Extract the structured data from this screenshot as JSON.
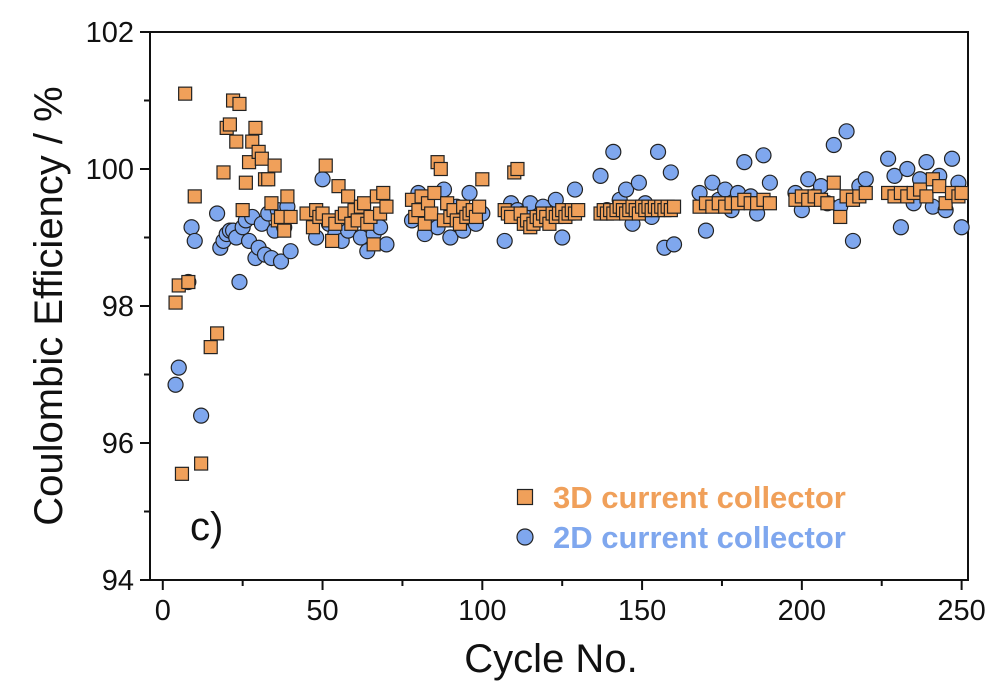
{
  "chart_data": {
    "type": "scatter",
    "title": "",
    "xlabel": "Cycle No.",
    "ylabel": "Coulombic Efficiency / %",
    "xlim": [
      -4,
      252
    ],
    "ylim": [
      94,
      102
    ],
    "xticks": [
      0,
      50,
      100,
      150,
      200,
      250
    ],
    "yticks": [
      94,
      96,
      98,
      100,
      102
    ],
    "grid": false,
    "legend": "bottom-right",
    "panel_label": "c)",
    "colors": {
      "series_3d": "#f0a05a",
      "series_2d": "#7fa7ee",
      "edge": "#222222"
    },
    "series": [
      {
        "name": "3D current collector",
        "marker": "square",
        "color": "#f0a05a",
        "x": [
          4,
          5,
          6,
          7,
          8,
          10,
          12,
          15,
          17,
          19,
          20,
          21,
          22,
          23,
          24,
          25,
          26,
          27,
          28,
          29,
          30,
          31,
          32,
          33,
          34,
          35,
          36,
          37,
          38,
          39,
          40,
          45,
          47,
          48,
          49,
          50,
          51,
          52,
          53,
          54,
          55,
          56,
          57,
          58,
          59,
          60,
          61,
          62,
          63,
          64,
          65,
          66,
          67,
          68,
          69,
          70,
          78,
          79,
          80,
          81,
          82,
          83,
          84,
          85,
          86,
          87,
          88,
          89,
          90,
          91,
          92,
          93,
          94,
          95,
          96,
          97,
          98,
          99,
          100,
          107,
          108,
          109,
          110,
          111,
          112,
          113,
          114,
          115,
          116,
          117,
          118,
          119,
          120,
          121,
          122,
          123,
          124,
          125,
          126,
          127,
          128,
          129,
          130,
          137,
          138,
          139,
          140,
          141,
          142,
          143,
          144,
          145,
          146,
          147,
          148,
          149,
          150,
          151,
          152,
          153,
          154,
          155,
          156,
          157,
          158,
          159,
          160,
          168,
          170,
          172,
          174,
          176,
          178,
          180,
          182,
          184,
          186,
          188,
          190,
          198,
          200,
          202,
          204,
          206,
          208,
          210,
          212,
          214,
          216,
          218,
          220,
          227,
          229,
          231,
          233,
          235,
          237,
          239,
          241,
          243,
          245,
          247,
          249,
          250
        ],
        "y": [
          98.05,
          98.3,
          95.55,
          101.1,
          98.35,
          99.6,
          95.7,
          97.4,
          97.6,
          99.95,
          100.6,
          100.65,
          101.0,
          100.4,
          100.95,
          99.4,
          99.8,
          100.1,
          100.4,
          100.6,
          100.25,
          100.15,
          99.85,
          99.85,
          99.5,
          100.05,
          99.25,
          99.3,
          99.1,
          99.6,
          99.3,
          99.35,
          99.15,
          99.4,
          99.3,
          99.35,
          100.05,
          99.25,
          98.95,
          99.2,
          99.75,
          99.3,
          99.35,
          99.6,
          99.2,
          99.4,
          99.25,
          99.45,
          99.5,
          99.2,
          99.3,
          98.9,
          99.6,
          99.35,
          99.65,
          99.45,
          99.55,
          99.3,
          99.4,
          99.6,
          99.2,
          99.5,
          99.35,
          99.65,
          100.1,
          100.0,
          99.25,
          99.5,
          99.3,
          99.4,
          99.25,
          99.2,
          99.45,
          99.3,
          99.35,
          99.4,
          99.3,
          99.45,
          99.85,
          99.4,
          99.35,
          99.3,
          99.95,
          100.0,
          99.35,
          99.2,
          99.25,
          99.15,
          99.2,
          99.3,
          99.25,
          99.35,
          99.3,
          99.2,
          99.35,
          99.3,
          99.35,
          99.4,
          99.3,
          99.35,
          99.4,
          99.35,
          99.4,
          99.35,
          99.4,
          99.35,
          99.4,
          99.35,
          99.4,
          99.45,
          99.4,
          99.35,
          99.4,
          99.45,
          99.4,
          99.35,
          99.45,
          99.4,
          99.45,
          99.4,
          99.45,
          99.4,
          99.45,
          99.4,
          99.45,
          99.4,
          99.45,
          99.45,
          99.5,
          99.45,
          99.5,
          99.45,
          99.5,
          99.5,
          99.55,
          99.5,
          99.5,
          99.55,
          99.5,
          99.55,
          99.6,
          99.55,
          99.6,
          99.55,
          99.5,
          99.8,
          99.3,
          99.6,
          99.55,
          99.6,
          99.65,
          99.65,
          99.6,
          99.65,
          99.6,
          99.65,
          99.7,
          99.6,
          99.85,
          99.75,
          99.5,
          99.65,
          99.6,
          99.65
        ]
      },
      {
        "name": "2D current collector",
        "marker": "circle",
        "color": "#7fa7ee",
        "x": [
          4,
          5,
          8,
          9,
          10,
          12,
          17,
          18,
          19,
          20,
          21,
          22,
          23,
          24,
          25,
          26,
          27,
          28,
          29,
          30,
          31,
          32,
          33,
          34,
          35,
          36,
          37,
          38,
          39,
          40,
          48,
          50,
          52,
          54,
          56,
          58,
          60,
          62,
          64,
          66,
          68,
          70,
          78,
          80,
          82,
          84,
          86,
          88,
          90,
          92,
          94,
          96,
          98,
          100,
          107,
          109,
          111,
          113,
          115,
          117,
          119,
          121,
          123,
          125,
          127,
          129,
          137,
          139,
          141,
          143,
          145,
          147,
          149,
          151,
          153,
          155,
          157,
          159,
          160,
          168,
          170,
          172,
          174,
          176,
          178,
          180,
          182,
          184,
          186,
          188,
          190,
          198,
          200,
          202,
          204,
          206,
          208,
          210,
          212,
          214,
          216,
          218,
          220,
          227,
          229,
          231,
          233,
          235,
          237,
          239,
          241,
          243,
          245,
          247,
          249,
          250
        ],
        "y": [
          96.85,
          97.1,
          98.35,
          99.15,
          98.95,
          96.4,
          99.35,
          98.85,
          98.95,
          99.05,
          99.1,
          99.1,
          99.0,
          98.35,
          99.15,
          99.25,
          98.95,
          99.3,
          98.7,
          98.85,
          99.2,
          98.75,
          99.35,
          98.7,
          99.1,
          99.4,
          98.65,
          99.15,
          99.45,
          98.8,
          99.0,
          99.85,
          99.2,
          99.05,
          98.95,
          99.1,
          99.25,
          99.0,
          98.8,
          99.05,
          99.15,
          98.9,
          99.25,
          99.65,
          99.05,
          99.3,
          99.15,
          99.7,
          99.0,
          99.45,
          99.1,
          99.65,
          99.2,
          99.35,
          98.95,
          99.5,
          99.4,
          99.35,
          99.5,
          99.25,
          99.45,
          99.3,
          99.55,
          99.0,
          99.35,
          99.7,
          99.9,
          99.4,
          100.25,
          99.55,
          99.7,
          99.2,
          99.8,
          99.5,
          99.3,
          100.25,
          98.85,
          99.95,
          98.9,
          99.65,
          99.1,
          99.8,
          99.55,
          99.7,
          99.4,
          99.65,
          100.1,
          99.6,
          99.35,
          100.2,
          99.8,
          99.65,
          99.4,
          99.85,
          99.6,
          99.75,
          99.5,
          100.35,
          99.45,
          100.55,
          98.95,
          99.75,
          99.85,
          100.15,
          99.9,
          99.15,
          100.0,
          99.5,
          99.85,
          100.1,
          99.45,
          99.9,
          99.4,
          100.15,
          99.8,
          99.15
        ]
      }
    ]
  }
}
